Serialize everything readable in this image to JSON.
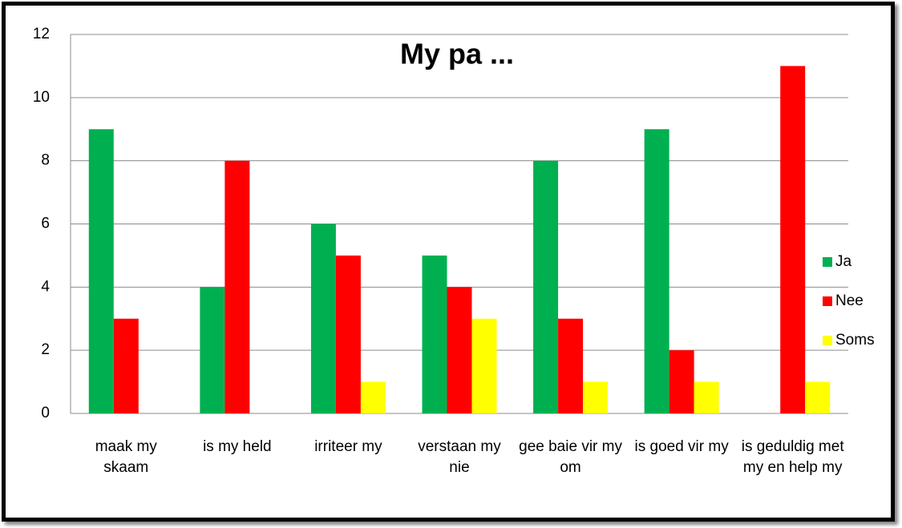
{
  "chart_data": {
    "type": "bar",
    "title": "My pa ...",
    "categories": [
      "maak my skaam",
      "is my held",
      "irriteer my",
      "verstaan my nie",
      "gee baie vir my om",
      "is goed vir my",
      "is geduldig met my en help my"
    ],
    "series": [
      {
        "name": "Ja",
        "color": "#00b050",
        "values": [
          9,
          4,
          6,
          5,
          8,
          9,
          0
        ]
      },
      {
        "name": "Nee",
        "color": "#ff0000",
        "values": [
          3,
          8,
          5,
          4,
          3,
          2,
          11
        ]
      },
      {
        "name": "Soms",
        "color": "#ffff00",
        "values": [
          0,
          0,
          1,
          3,
          1,
          1,
          1
        ]
      }
    ],
    "ylim": [
      0,
      12
    ],
    "yticks": [
      0,
      2,
      4,
      6,
      8,
      10,
      12
    ],
    "grid": true,
    "legend": "right"
  }
}
